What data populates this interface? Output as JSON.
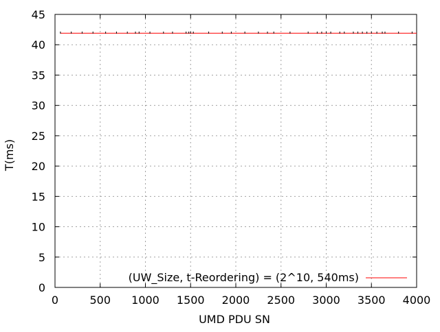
{
  "chart_data": {
    "type": "line",
    "title": "",
    "xlabel": "UMD PDU SN",
    "ylabel": "T(ms)",
    "xlim": [
      0,
      4000
    ],
    "ylim": [
      0,
      45
    ],
    "x_ticks": [
      0,
      500,
      1000,
      1500,
      2000,
      2500,
      3000,
      3500,
      4000
    ],
    "y_ticks": [
      0,
      5,
      10,
      15,
      20,
      25,
      30,
      35,
      40,
      45
    ],
    "grid": true,
    "legend_position": "bottom-right",
    "series": [
      {
        "name": "(UW_Size, t-Reordering) = (2^10, 540ms)",
        "color": "#ff0000",
        "x": [
          60,
          4000
        ],
        "y": [
          41.9,
          41.9
        ]
      }
    ],
    "markers": {
      "color": "#000000",
      "y": 42.0,
      "x": [
        60,
        180,
        300,
        420,
        560,
        680,
        800,
        890,
        930,
        1050,
        1200,
        1300,
        1450,
        1480,
        1500,
        1530,
        1700,
        1850,
        1950,
        2100,
        2250,
        2350,
        2420,
        2600,
        2800,
        2900,
        2950,
        3000,
        3050,
        3150,
        3200,
        3300,
        3350,
        3400,
        3450,
        3500,
        3560,
        3620,
        3650,
        3800,
        3950
      ]
    }
  }
}
